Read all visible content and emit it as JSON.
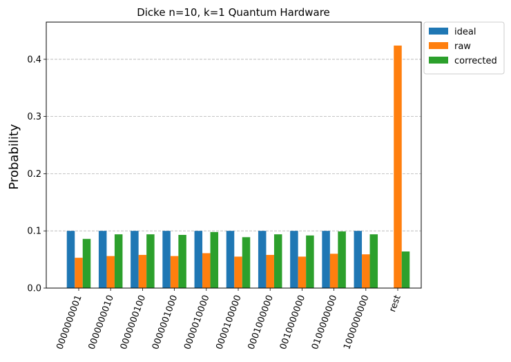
{
  "chart_data": {
    "type": "bar",
    "title": "Dicke n=10, k=1 Quantum Hardware",
    "xlabel": "",
    "ylabel": "Probability",
    "ylim": [
      0,
      0.465
    ],
    "yticks": [
      0.0,
      0.1,
      0.2,
      0.3,
      0.4
    ],
    "ytick_labels": [
      "0.0",
      "0.1",
      "0.2",
      "0.3",
      "0.4"
    ],
    "grid": "y-dashed",
    "legend_position": "outside-top-right",
    "categories": [
      "0000000001",
      "0000000010",
      "0000000100",
      "0000001000",
      "0000010000",
      "0000100000",
      "0001000000",
      "0010000000",
      "0100000000",
      "1000000000",
      "rest"
    ],
    "series": [
      {
        "name": "ideal",
        "color": "#1f77b4",
        "values": [
          0.1,
          0.1,
          0.1,
          0.1,
          0.1,
          0.1,
          0.1,
          0.1,
          0.1,
          0.1,
          0.0
        ]
      },
      {
        "name": "raw",
        "color": "#ff7f0e",
        "values": [
          0.053,
          0.056,
          0.058,
          0.056,
          0.061,
          0.055,
          0.058,
          0.055,
          0.06,
          0.059,
          0.424
        ]
      },
      {
        "name": "corrected",
        "color": "#2ca02c",
        "values": [
          0.086,
          0.094,
          0.094,
          0.093,
          0.098,
          0.089,
          0.094,
          0.092,
          0.099,
          0.094,
          0.064
        ]
      }
    ]
  }
}
